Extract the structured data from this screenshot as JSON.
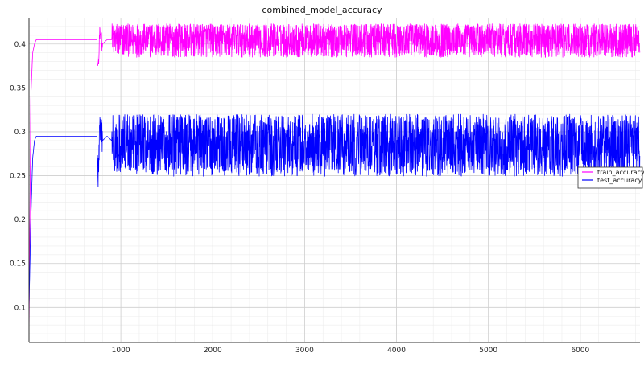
{
  "chart_data": {
    "type": "line",
    "title": "combined_model_accuracy",
    "xlabel": "",
    "ylabel": "",
    "xlim": [
      0,
      6650
    ],
    "ylim": [
      0.06,
      0.43
    ],
    "x_ticks": [
      1000,
      2000,
      3000,
      4000,
      5000,
      6000
    ],
    "x_tick_labels": [
      "1000",
      "2000",
      "3000",
      "4000",
      "5000",
      "6000"
    ],
    "y_ticks": [
      0.1,
      0.15,
      0.2,
      0.25,
      0.3,
      0.35,
      0.4
    ],
    "y_tick_labels": [
      "0.1",
      "0.15",
      "0.2",
      "0.25",
      "0.3",
      "0.35",
      "0.4"
    ],
    "grid": true,
    "minor_grid": true,
    "legend_position": "right",
    "series": [
      {
        "name": "train_accuracy",
        "color": "#ff00ff",
        "x": [
          0,
          20,
          40,
          60,
          80,
          100,
          150,
          200,
          300,
          400,
          500,
          600,
          700,
          740,
          750,
          770,
          800,
          850,
          900,
          950,
          1000,
          1500,
          2000,
          2500,
          3000,
          3500,
          4000,
          4500,
          5000,
          5500,
          6000,
          6500,
          6650
        ],
        "values": [
          0.07,
          0.34,
          0.39,
          0.4,
          0.405,
          0.405,
          0.405,
          0.405,
          0.405,
          0.405,
          0.405,
          0.405,
          0.405,
          0.405,
          0.35,
          0.415,
          0.4,
          0.405,
          0.405,
          0.405,
          0.405,
          0.405,
          0.405,
          0.405,
          0.405,
          0.405,
          0.405,
          0.405,
          0.405,
          0.405,
          0.405,
          0.405,
          0.405
        ],
        "noise_band": [
          0.375,
          0.423
        ]
      },
      {
        "name": "test_accuracy",
        "color": "#0000ff",
        "x": [
          0,
          20,
          40,
          60,
          80,
          100,
          150,
          200,
          300,
          400,
          500,
          600,
          700,
          740,
          750,
          770,
          800,
          850,
          900,
          950,
          1000,
          1500,
          2000,
          2500,
          3000,
          3500,
          4000,
          4500,
          5000,
          5500,
          6000,
          6500,
          6650
        ],
        "values": [
          0.1,
          0.2,
          0.27,
          0.29,
          0.295,
          0.295,
          0.295,
          0.295,
          0.295,
          0.295,
          0.295,
          0.295,
          0.295,
          0.295,
          0.24,
          0.305,
          0.29,
          0.295,
          0.29,
          0.29,
          0.29,
          0.285,
          0.285,
          0.285,
          0.285,
          0.285,
          0.285,
          0.285,
          0.285,
          0.285,
          0.285,
          0.285,
          0.285
        ],
        "noise_band": [
          0.235,
          0.32
        ]
      }
    ]
  }
}
